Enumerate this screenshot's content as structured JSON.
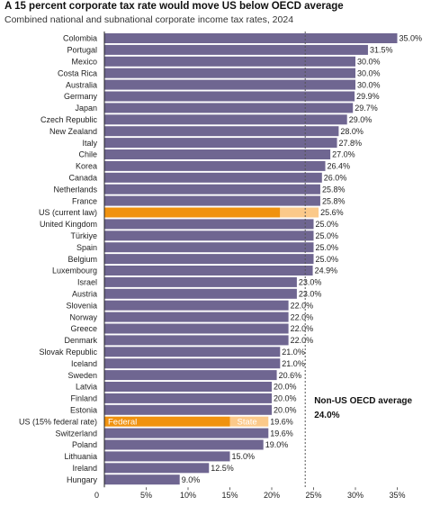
{
  "chart_data": {
    "type": "bar",
    "orientation": "horizontal",
    "title": "A 15 percent corporate tax rate would move US below OECD average",
    "subtitle": "Combined national and subnational corporate income tax rates, 2024",
    "xlim": [
      0,
      36
    ],
    "xticks": [
      "0",
      "5%",
      "10%",
      "15%",
      "20%",
      "25%",
      "30%",
      "35%"
    ],
    "xtick_values": [
      0,
      5,
      10,
      15,
      20,
      25,
      30,
      35
    ],
    "reference_line": {
      "value": 24.0,
      "label": "Non-US OECD average",
      "value_label": "24.0%"
    },
    "colors": {
      "default": "#6f6691",
      "federal": "#f0920f",
      "state": "#fbc98a",
      "reference": "#555555"
    },
    "bars": [
      {
        "label": "Colombia",
        "value": 35.0,
        "value_label": "35.0%"
      },
      {
        "label": "Portugal",
        "value": 31.5,
        "value_label": "31.5%"
      },
      {
        "label": "Mexico",
        "value": 30.0,
        "value_label": "30.0%"
      },
      {
        "label": "Costa Rica",
        "value": 30.0,
        "value_label": "30.0%"
      },
      {
        "label": "Australia",
        "value": 30.0,
        "value_label": "30.0%"
      },
      {
        "label": "Germany",
        "value": 29.9,
        "value_label": "29.9%"
      },
      {
        "label": "Japan",
        "value": 29.7,
        "value_label": "29.7%"
      },
      {
        "label": "Czech Republic",
        "value": 29.0,
        "value_label": "29.0%"
      },
      {
        "label": "New Zealand",
        "value": 28.0,
        "value_label": "28.0%"
      },
      {
        "label": "Italy",
        "value": 27.8,
        "value_label": "27.8%"
      },
      {
        "label": "Chile",
        "value": 27.0,
        "value_label": "27.0%"
      },
      {
        "label": "Korea",
        "value": 26.4,
        "value_label": "26.4%"
      },
      {
        "label": "Canada",
        "value": 26.0,
        "value_label": "26.0%"
      },
      {
        "label": "Netherlands",
        "value": 25.8,
        "value_label": "25.8%"
      },
      {
        "label": "France",
        "value": 25.8,
        "value_label": "25.8%"
      },
      {
        "label": "US (current law)",
        "value": 25.6,
        "federal": 21.0,
        "value_label": "25.6%",
        "highlight": true
      },
      {
        "label": "United Kingdom",
        "value": 25.0,
        "value_label": "25.0%"
      },
      {
        "label": "Türkiye",
        "value": 25.0,
        "value_label": "25.0%"
      },
      {
        "label": "Spain",
        "value": 25.0,
        "value_label": "25.0%"
      },
      {
        "label": "Belgium",
        "value": 25.0,
        "value_label": "25.0%"
      },
      {
        "label": "Luxembourg",
        "value": 24.9,
        "value_label": "24.9%"
      },
      {
        "label": "Israel",
        "value": 23.0,
        "value_label": "23.0%"
      },
      {
        "label": "Austria",
        "value": 23.0,
        "value_label": "23.0%"
      },
      {
        "label": "Slovenia",
        "value": 22.0,
        "value_label": "22.0%"
      },
      {
        "label": "Norway",
        "value": 22.0,
        "value_label": "22.0%"
      },
      {
        "label": "Greece",
        "value": 22.0,
        "value_label": "22.0%"
      },
      {
        "label": "Denmark",
        "value": 22.0,
        "value_label": "22.0%"
      },
      {
        "label": "Slovak Republic",
        "value": 21.0,
        "value_label": "21.0%"
      },
      {
        "label": "Iceland",
        "value": 21.0,
        "value_label": "21.0%"
      },
      {
        "label": "Sweden",
        "value": 20.6,
        "value_label": "20.6%"
      },
      {
        "label": "Latvia",
        "value": 20.0,
        "value_label": "20.0%"
      },
      {
        "label": "Finland",
        "value": 20.0,
        "value_label": "20.0%"
      },
      {
        "label": "Estonia",
        "value": 20.0,
        "value_label": "20.0%"
      },
      {
        "label": "US (15% federal rate)",
        "value": 19.6,
        "federal": 15.0,
        "value_label": "19.6%",
        "highlight": true,
        "federal_label": "Federal",
        "state_label": "State"
      },
      {
        "label": "Switzerland",
        "value": 19.6,
        "value_label": "19.6%"
      },
      {
        "label": "Poland",
        "value": 19.0,
        "value_label": "19.0%"
      },
      {
        "label": "Lithuania",
        "value": 15.0,
        "value_label": "15.0%"
      },
      {
        "label": "Ireland",
        "value": 12.5,
        "value_label": "12.5%"
      },
      {
        "label": "Hungary",
        "value": 9.0,
        "value_label": "9.0%"
      }
    ]
  }
}
